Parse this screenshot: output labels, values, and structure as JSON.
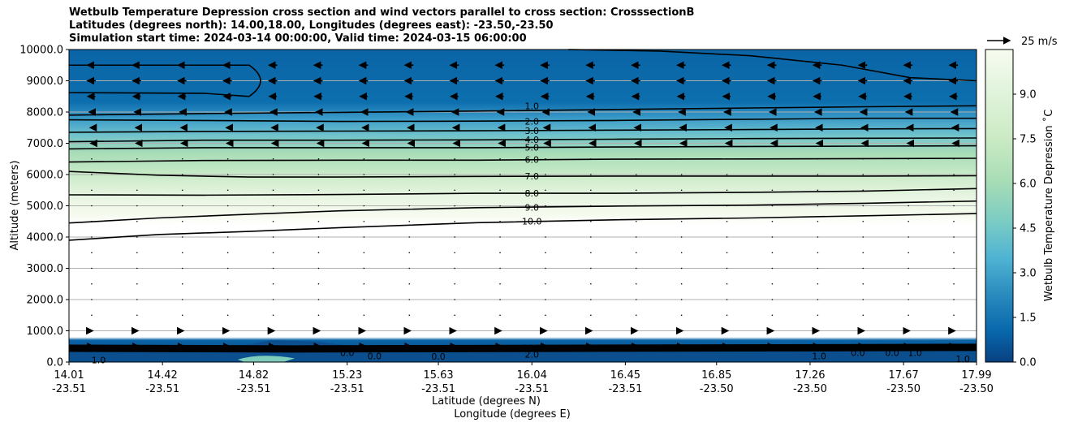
{
  "title": {
    "line1": "Wetbulb Temperature Depression cross section and wind vectors parallel to cross section: CrosssectionB",
    "line2": "Latitudes (degrees north): 14.00,18.00, Longitudes (degrees east): -23.50,-23.50",
    "line3": "Simulation start time: 2024-03-14 00:00:00, Valid time: 2024-03-15 06:00:00"
  },
  "ylabel": "Altitude (meters)",
  "xlabel1": "Latitude (degrees N)",
  "xlabel2": "Longitude (degrees E)",
  "colorbar_label": "Wetbulb Temperature Depression ˚C",
  "quiver_key_label": "25 m/s",
  "chart_data": {
    "type": "contour",
    "xlim": [
      14.01,
      17.99
    ],
    "ylim": [
      0,
      10000
    ],
    "grid": true,
    "y_ticks": [
      {
        "value": 0,
        "label": "0.0"
      },
      {
        "value": 1000,
        "label": "1000.0"
      },
      {
        "value": 2000,
        "label": "2000.0"
      },
      {
        "value": 3000,
        "label": "3000.0"
      },
      {
        "value": 4000,
        "label": "4000.0"
      },
      {
        "value": 5000,
        "label": "5000.0"
      },
      {
        "value": 6000,
        "label": "6000.0"
      },
      {
        "value": 7000,
        "label": "7000.0"
      },
      {
        "value": 8000,
        "label": "8000.0"
      },
      {
        "value": 9000,
        "label": "9000.0"
      },
      {
        "value": 10000,
        "label": "10000.0"
      }
    ],
    "x_ticks": [
      {
        "value": 14.01,
        "lat": "14.01",
        "lon": "-23.51"
      },
      {
        "value": 14.42,
        "lat": "14.42",
        "lon": "-23.51"
      },
      {
        "value": 14.82,
        "lat": "14.82",
        "lon": "-23.51"
      },
      {
        "value": 15.23,
        "lat": "15.23",
        "lon": "-23.51"
      },
      {
        "value": 15.63,
        "lat": "15.63",
        "lon": "-23.51"
      },
      {
        "value": 16.04,
        "lat": "16.04",
        "lon": "-23.51"
      },
      {
        "value": 16.45,
        "lat": "16.45",
        "lon": "-23.51"
      },
      {
        "value": 16.85,
        "lat": "16.85",
        "lon": "-23.50"
      },
      {
        "value": 17.26,
        "lat": "17.26",
        "lon": "-23.50"
      },
      {
        "value": 17.67,
        "lat": "17.67",
        "lon": "-23.50"
      },
      {
        "value": 17.99,
        "lat": "17.99",
        "lon": "-23.50"
      }
    ],
    "colorbar": {
      "range": [
        0,
        10.5
      ],
      "ticks": [
        "0.0",
        "1.5",
        "3.0",
        "4.5",
        "6.0",
        "7.5",
        "9.0"
      ]
    },
    "contour_labels": [
      {
        "value": "1.0",
        "x": 16.04,
        "y": 8200
      },
      {
        "value": "2.0",
        "x": 16.04,
        "y": 7700
      },
      {
        "value": "3.0",
        "x": 16.04,
        "y": 7400
      },
      {
        "value": "4.0",
        "x": 16.04,
        "y": 7120
      },
      {
        "value": "5.0",
        "x": 16.04,
        "y": 6870
      },
      {
        "value": "6.0",
        "x": 16.04,
        "y": 6480
      },
      {
        "value": "7.0",
        "x": 16.04,
        "y": 5950
      },
      {
        "value": "8.0",
        "x": 16.04,
        "y": 5400
      },
      {
        "value": "9.0",
        "x": 16.04,
        "y": 4950
      },
      {
        "value": "10.0",
        "x": 16.04,
        "y": 4510
      },
      {
        "value": "10.0",
        "x": 16.04,
        "y": 450
      },
      {
        "value": "2.0",
        "x": 16.04,
        "y": 250
      },
      {
        "value": "0.0",
        "x": 15.23,
        "y": 300
      },
      {
        "value": "0.0",
        "x": 15.35,
        "y": 200
      },
      {
        "value": "0.0",
        "x": 15.63,
        "y": 180
      },
      {
        "value": "0.0",
        "x": 17.47,
        "y": 300
      },
      {
        "value": "0.0",
        "x": 17.62,
        "y": 300
      },
      {
        "value": "1.0",
        "x": 17.72,
        "y": 300
      },
      {
        "value": "1.0",
        "x": 17.93,
        "y": 100
      },
      {
        "value": "1.0",
        "x": 14.14,
        "y": 60
      },
      {
        "value": "1.0",
        "x": 17.3,
        "y": 200
      }
    ],
    "contours": [
      {
        "level": 1.0,
        "points": [
          [
            14.01,
            7900
          ],
          [
            14.6,
            7950
          ],
          [
            15.2,
            7990
          ],
          [
            15.8,
            8030
          ],
          [
            16.4,
            8080
          ],
          [
            17.0,
            8130
          ],
          [
            17.5,
            8170
          ],
          [
            17.99,
            8200
          ]
        ]
      },
      {
        "level": 2.0,
        "points": [
          [
            14.01,
            7750
          ],
          [
            14.6,
            7730
          ],
          [
            15.2,
            7700
          ],
          [
            15.8,
            7710
          ],
          [
            16.4,
            7730
          ],
          [
            17.0,
            7770
          ],
          [
            17.5,
            7800
          ],
          [
            17.99,
            7800
          ]
        ]
      },
      {
        "level": 3.0,
        "points": [
          [
            14.01,
            7350
          ],
          [
            14.6,
            7380
          ],
          [
            15.2,
            7390
          ],
          [
            15.8,
            7400
          ],
          [
            16.4,
            7420
          ],
          [
            17.0,
            7440
          ],
          [
            17.5,
            7460
          ],
          [
            17.99,
            7470
          ]
        ]
      },
      {
        "level": 4.0,
        "points": [
          [
            14.01,
            7050
          ],
          [
            14.6,
            7100
          ],
          [
            15.2,
            7100
          ],
          [
            15.8,
            7110
          ],
          [
            16.4,
            7130
          ],
          [
            17.0,
            7150
          ],
          [
            17.5,
            7160
          ],
          [
            17.99,
            7170
          ]
        ]
      },
      {
        "level": 5.0,
        "points": [
          [
            14.01,
            6820
          ],
          [
            14.6,
            6860
          ],
          [
            15.2,
            6860
          ],
          [
            15.8,
            6860
          ],
          [
            16.4,
            6880
          ],
          [
            17.0,
            6900
          ],
          [
            17.5,
            6910
          ],
          [
            17.99,
            6920
          ]
        ]
      },
      {
        "level": 6.0,
        "points": [
          [
            14.01,
            6400
          ],
          [
            14.6,
            6450
          ],
          [
            15.2,
            6460
          ],
          [
            15.8,
            6460
          ],
          [
            16.4,
            6490
          ],
          [
            17.0,
            6500
          ],
          [
            17.5,
            6510
          ],
          [
            17.99,
            6520
          ]
        ]
      },
      {
        "level": 7.0,
        "points": [
          [
            14.01,
            6100
          ],
          [
            14.4,
            5980
          ],
          [
            14.8,
            5920
          ],
          [
            15.2,
            5920
          ],
          [
            15.8,
            5940
          ],
          [
            16.4,
            5950
          ],
          [
            17.0,
            5950
          ],
          [
            17.5,
            5950
          ],
          [
            17.99,
            5960
          ]
        ]
      },
      {
        "level": 8.0,
        "points": [
          [
            14.01,
            5350
          ],
          [
            14.6,
            5340
          ],
          [
            15.2,
            5360
          ],
          [
            15.8,
            5400
          ],
          [
            16.4,
            5400
          ],
          [
            17.0,
            5430
          ],
          [
            17.5,
            5470
          ],
          [
            17.99,
            5550
          ]
        ]
      },
      {
        "level": 9.0,
        "points": [
          [
            14.01,
            4450
          ],
          [
            14.4,
            4610
          ],
          [
            14.8,
            4730
          ],
          [
            15.2,
            4840
          ],
          [
            15.8,
            4940
          ],
          [
            16.4,
            4990
          ],
          [
            17.0,
            5020
          ],
          [
            17.5,
            5080
          ],
          [
            17.99,
            5150
          ]
        ]
      },
      {
        "level": 10.0,
        "points": [
          [
            14.01,
            3900
          ],
          [
            14.4,
            4080
          ],
          [
            14.8,
            4180
          ],
          [
            15.2,
            4300
          ],
          [
            15.8,
            4460
          ],
          [
            16.4,
            4550
          ],
          [
            17.0,
            4610
          ],
          [
            17.5,
            4680
          ],
          [
            17.99,
            4750
          ]
        ]
      }
    ],
    "upper_dry_contour": {
      "points": [
        [
          16.2,
          10000
        ],
        [
          16.6,
          9950
        ],
        [
          17.0,
          9800
        ],
        [
          17.4,
          9500
        ],
        [
          17.7,
          9100
        ],
        [
          17.99,
          9000
        ]
      ]
    },
    "wind_vectors": {
      "levels_m": [
        9500,
        9000,
        8500,
        8000,
        7500,
        7000,
        6500,
        6000,
        5500,
        5000,
        4500,
        4000,
        3500,
        3000,
        2500,
        2000,
        1500,
        1000,
        500
      ],
      "u_ms": [
        -9,
        -9,
        -8,
        -5,
        -3,
        -2,
        -1,
        -0.5,
        -0.3,
        -0.2,
        -0.2,
        -0.1,
        -0.1,
        0.05,
        0.1,
        0.2,
        0.8,
        2.0,
        4.0
      ]
    }
  }
}
